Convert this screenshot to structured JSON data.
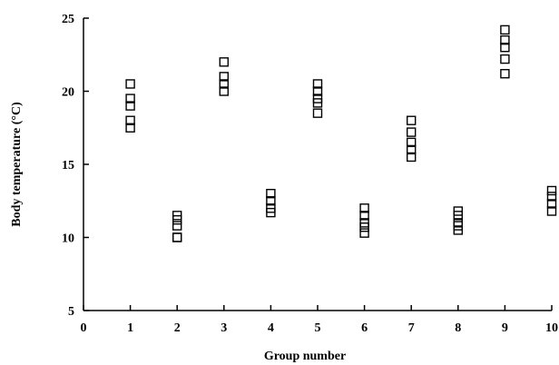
{
  "chart_data": {
    "type": "scatter",
    "title": "",
    "xlabel": "Group number",
    "ylabel": "Body temperature (°C)",
    "xlim": [
      0,
      10
    ],
    "ylim": [
      5,
      25
    ],
    "xticks": [
      0,
      1,
      2,
      3,
      4,
      5,
      6,
      7,
      8,
      9,
      10
    ],
    "yticks": [
      5,
      10,
      15,
      20,
      25
    ],
    "grid": false,
    "marker": "open-square",
    "points": [
      {
        "x": 1,
        "y": 20.5
      },
      {
        "x": 1,
        "y": 19.5
      },
      {
        "x": 1,
        "y": 19.0
      },
      {
        "x": 1,
        "y": 18.0
      },
      {
        "x": 1,
        "y": 17.5
      },
      {
        "x": 2,
        "y": 11.5
      },
      {
        "x": 2,
        "y": 11.2
      },
      {
        "x": 2,
        "y": 10.8
      },
      {
        "x": 2,
        "y": 10.0
      },
      {
        "x": 2,
        "y": 10.0
      },
      {
        "x": 3,
        "y": 22.0
      },
      {
        "x": 3,
        "y": 21.0
      },
      {
        "x": 3,
        "y": 20.5
      },
      {
        "x": 3,
        "y": 20.0
      },
      {
        "x": 4,
        "y": 13.0
      },
      {
        "x": 4,
        "y": 12.5
      },
      {
        "x": 4,
        "y": 12.0
      },
      {
        "x": 4,
        "y": 11.7
      },
      {
        "x": 5,
        "y": 20.5
      },
      {
        "x": 5,
        "y": 20.0
      },
      {
        "x": 5,
        "y": 19.5
      },
      {
        "x": 5,
        "y": 19.2
      },
      {
        "x": 5,
        "y": 18.5
      },
      {
        "x": 6,
        "y": 12.0
      },
      {
        "x": 6,
        "y": 11.5
      },
      {
        "x": 6,
        "y": 11.0
      },
      {
        "x": 6,
        "y": 10.7
      },
      {
        "x": 6,
        "y": 10.3
      },
      {
        "x": 7,
        "y": 18.0
      },
      {
        "x": 7,
        "y": 17.2
      },
      {
        "x": 7,
        "y": 16.5
      },
      {
        "x": 7,
        "y": 16.0
      },
      {
        "x": 7,
        "y": 15.5
      },
      {
        "x": 8,
        "y": 11.8
      },
      {
        "x": 8,
        "y": 11.5
      },
      {
        "x": 8,
        "y": 11.0
      },
      {
        "x": 8,
        "y": 10.8
      },
      {
        "x": 8,
        "y": 10.5
      },
      {
        "x": 9,
        "y": 24.2
      },
      {
        "x": 9,
        "y": 23.5
      },
      {
        "x": 9,
        "y": 23.0
      },
      {
        "x": 9,
        "y": 22.2
      },
      {
        "x": 9,
        "y": 21.2
      },
      {
        "x": 10,
        "y": 13.2
      },
      {
        "x": 10,
        "y": 12.8
      },
      {
        "x": 10,
        "y": 12.3
      },
      {
        "x": 10,
        "y": 11.8
      }
    ]
  }
}
